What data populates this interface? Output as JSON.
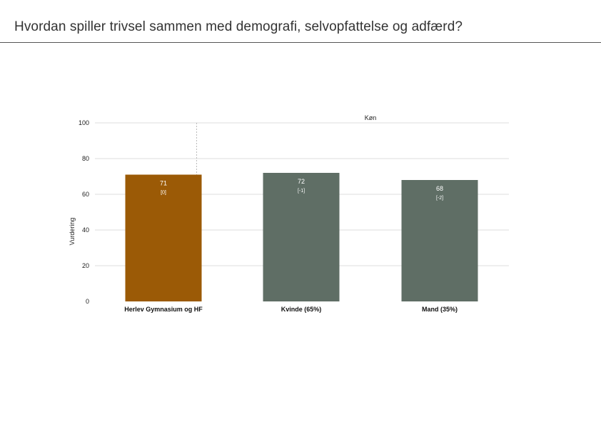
{
  "page": {
    "title": "Hvordan spiller trivsel sammen med demografi, selvopfattelse og adfærd?"
  },
  "chart_data": {
    "type": "bar",
    "facet_title": "Køn",
    "ylabel": "Vurdering",
    "xlabel": "",
    "ylim": [
      0,
      100
    ],
    "yticks": [
      0,
      20,
      40,
      60,
      80,
      100
    ],
    "grid": true,
    "categories": [
      "Herlev Gymnasium og HF",
      "Kvinde (65%)",
      "Mand (35%)"
    ],
    "values": [
      71,
      72,
      68
    ],
    "value_labels": [
      "71",
      "72",
      "68"
    ],
    "diff_labels": [
      "[0]",
      "[-1]",
      "[-2]"
    ],
    "colors": [
      "#9b5a06",
      "#5f6e65",
      "#5f6e65"
    ],
    "separator_after_index": 0
  }
}
